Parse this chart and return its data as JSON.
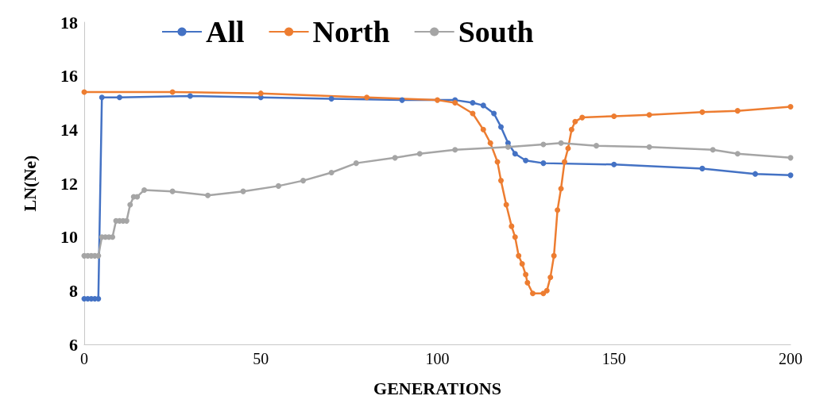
{
  "chart_data": {
    "type": "line",
    "xlabel": "GENERATIONS",
    "ylabel": "LN(Ne)",
    "xlim": [
      0,
      200
    ],
    "xticks": [
      0,
      50,
      100,
      150,
      200
    ],
    "ylim": [
      6,
      18
    ],
    "yticks": [
      6,
      8,
      10,
      12,
      14,
      16,
      18
    ],
    "grid": false,
    "legend": "top left",
    "marker": "circle",
    "line_style": "solid",
    "series": [
      {
        "name": "All",
        "color": "#4472c4",
        "x": [
          0,
          1,
          2,
          3,
          4,
          5,
          10,
          30,
          50,
          70,
          90,
          105,
          110,
          113,
          116,
          118,
          120,
          122,
          125,
          130,
          150,
          175,
          190,
          200
        ],
        "values": [
          7.7,
          7.7,
          7.7,
          7.7,
          7.7,
          15.2,
          15.2,
          15.25,
          15.2,
          15.15,
          15.1,
          15.1,
          15.0,
          14.9,
          14.6,
          14.1,
          13.5,
          13.1,
          12.85,
          12.75,
          12.7,
          12.55,
          12.35,
          12.3
        ]
      },
      {
        "name": "North",
        "color": "#ed7d31",
        "x": [
          0,
          25,
          50,
          80,
          100,
          105,
          110,
          113,
          115,
          117,
          118,
          119.5,
          121,
          122,
          123,
          124,
          125,
          125.5,
          127,
          130,
          131,
          132,
          133,
          134,
          135,
          136,
          137,
          138,
          139,
          141,
          150,
          160,
          175,
          185,
          200
        ],
        "values": [
          15.4,
          15.4,
          15.35,
          15.2,
          15.1,
          15.0,
          14.6,
          14.0,
          13.5,
          12.8,
          12.1,
          11.2,
          10.4,
          10.0,
          9.3,
          9.0,
          8.6,
          8.3,
          7.9,
          7.9,
          8.0,
          8.5,
          9.3,
          11.0,
          11.8,
          12.8,
          13.3,
          14.0,
          14.3,
          14.45,
          14.5,
          14.55,
          14.65,
          14.7,
          14.85
        ]
      },
      {
        "name": "South",
        "color": "#a5a5a5",
        "x": [
          0,
          1,
          2,
          3,
          4,
          5,
          6,
          7,
          8,
          9,
          10,
          11,
          12,
          13,
          14,
          15,
          17,
          25,
          35,
          45,
          55,
          62,
          70,
          77,
          88,
          95,
          105,
          120,
          130,
          135,
          145,
          160,
          178,
          185,
          200
        ],
        "values": [
          9.3,
          9.3,
          9.3,
          9.3,
          9.3,
          10.0,
          10.0,
          10.0,
          10.0,
          10.6,
          10.6,
          10.6,
          10.6,
          11.2,
          11.5,
          11.5,
          11.75,
          11.7,
          11.55,
          11.7,
          11.9,
          12.1,
          12.4,
          12.75,
          12.95,
          13.1,
          13.25,
          13.35,
          13.45,
          13.5,
          13.4,
          13.35,
          13.25,
          13.1,
          12.95
        ]
      }
    ]
  }
}
